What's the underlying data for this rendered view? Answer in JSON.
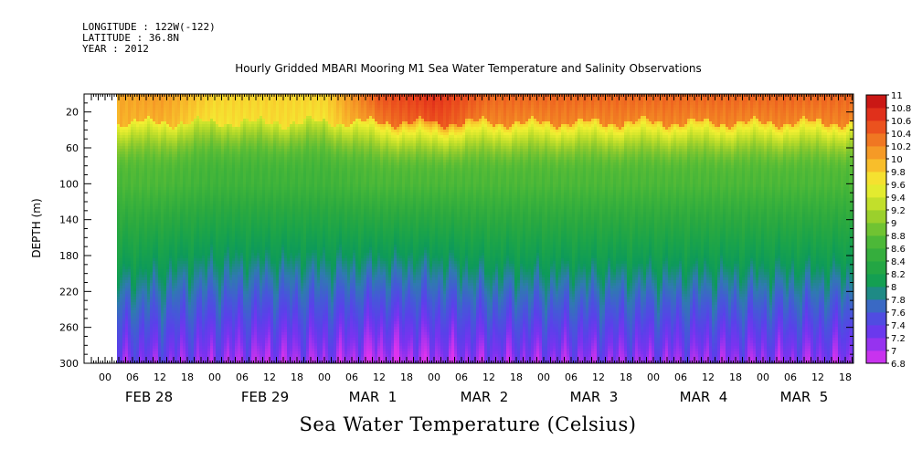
{
  "header": {
    "longitude": "LONGITUDE : 122W(-122)",
    "latitude": "LATITUDE : 36.8N",
    "year": "YEAR : 2012"
  },
  "chart_data": {
    "type": "heatmap",
    "title": "Hourly Gridded MBARI Mooring M1 Sea Water Temperature and Salinity Observations",
    "xlabel": "Sea Water Temperature (Celsius)",
    "ylabel": "DEPTH (m)",
    "ylim": [
      300,
      0
    ],
    "y_ticks": [
      20,
      60,
      100,
      140,
      180,
      220,
      260,
      300
    ],
    "x_hour_labels": [
      "00",
      "06",
      "12",
      "18",
      "00",
      "06",
      "12",
      "18",
      "00",
      "06",
      "12",
      "18",
      "00",
      "06",
      "12",
      "18",
      "00",
      "06",
      "12",
      "18",
      "00",
      "06",
      "12",
      "18",
      "00",
      "06",
      "12",
      "18"
    ],
    "x_day_labels": [
      "FEB 28",
      "FEB 29",
      "MAR  1",
      "MAR  2",
      "MAR  3",
      "MAR  4",
      "MAR  5"
    ],
    "colorbar": {
      "min": 6.8,
      "max": 11.0,
      "step": 0.2,
      "labels": [
        "6.8",
        "7",
        "7.2",
        "7.4",
        "7.6",
        "7.8",
        "8",
        "8.2",
        "8.4",
        "8.6",
        "8.8",
        "9",
        "9.2",
        "9.4",
        "9.6",
        "9.8",
        "10",
        "10.2",
        "10.4",
        "10.6",
        "10.8",
        "11"
      ]
    },
    "field_summary": {
      "x_hours": [
        0,
        48,
        96,
        144,
        192,
        240,
        288,
        336
      ],
      "surface_temp_0m": [
        10.0,
        10.1,
        9.8,
        9.8,
        9.8,
        10.5,
        10.7,
        10.4
      ],
      "temp_20m": [
        9.9,
        9.9,
        9.6,
        9.7,
        9.6,
        10.1,
        10.4,
        10.1
      ],
      "temp_100m": [
        8.7,
        8.7,
        8.6,
        8.6,
        8.6,
        8.7,
        8.7,
        8.7
      ],
      "temp_180m": [
        8.2,
        8.1,
        8.0,
        8.0,
        8.0,
        8.0,
        8.0,
        8.1
      ],
      "temp_300m": [
        7.2,
        7.2,
        7.1,
        7.0,
        7.1,
        6.9,
        7.0,
        7.1
      ]
    },
    "grid": false,
    "legend": "right"
  }
}
